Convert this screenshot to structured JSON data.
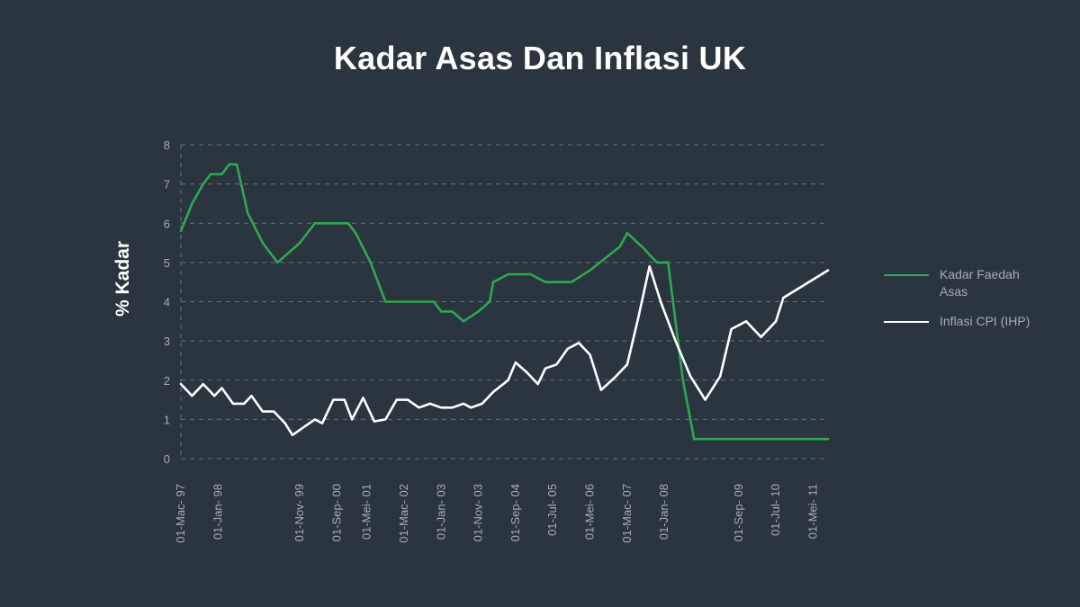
{
  "title": "Kadar Asas Dan Inflasi UK",
  "colors": {
    "background": "#2a353f",
    "grid": "#6b747d",
    "text": "#a6adb5",
    "series_1": "#2ea84f",
    "series_2": "#ffffff"
  },
  "chart_data": {
    "type": "line",
    "title": "Kadar Asas Dan Inflasi UK",
    "xlabel": "",
    "ylabel": "% Kadar",
    "ylim": [
      0,
      8
    ],
    "yticks": [
      0,
      1,
      2,
      3,
      4,
      5,
      6,
      7,
      8
    ],
    "xlim": [
      "1997-03",
      "2011-09"
    ],
    "grid": true,
    "legend": "right",
    "x_tick_labels": [
      {
        "date": "1997-03",
        "label": "01-Mac- 97"
      },
      {
        "date": "1998-01",
        "label": "01-Jan- 98"
      },
      {
        "date": "1999-11",
        "label": "01-Nov- 99"
      },
      {
        "date": "2000-09",
        "label": "01-Sep- 00"
      },
      {
        "date": "2001-05",
        "label": "01-Mei- 01"
      },
      {
        "date": "2002-03",
        "label": "01-Mac- 02"
      },
      {
        "date": "2003-01",
        "label": "01-Jan- 03"
      },
      {
        "date": "2003-11",
        "label": "01-Nov- 03"
      },
      {
        "date": "2004-09",
        "label": "01-Sep- 04"
      },
      {
        "date": "2005-07",
        "label": "01-Jul- 05"
      },
      {
        "date": "2006-05",
        "label": "01-Mei- 06"
      },
      {
        "date": "2007-03",
        "label": "01-Mac- 07"
      },
      {
        "date": "2008-01",
        "label": "01-Jan- 08"
      },
      {
        "date": "2009-09",
        "label": "01-Sep- 09"
      },
      {
        "date": "2010-07",
        "label": "01-Jul- 10"
      },
      {
        "date": "2011-05",
        "label": "01-Mei- 11"
      }
    ],
    "series": [
      {
        "name": "Kadar Faedah Asas",
        "color": "#2ea84f",
        "points": [
          [
            "1997-03",
            5.8
          ],
          [
            "1997-06",
            6.5
          ],
          [
            "1997-09",
            7.0
          ],
          [
            "1997-11",
            7.25
          ],
          [
            "1998-02",
            7.25
          ],
          [
            "1998-04",
            7.5
          ],
          [
            "1998-06",
            7.5
          ],
          [
            "1998-09",
            6.25
          ],
          [
            "1999-01",
            5.5
          ],
          [
            "1999-05",
            5.0
          ],
          [
            "1999-11",
            5.5
          ],
          [
            "2000-03",
            6.0
          ],
          [
            "2000-07",
            6.0
          ],
          [
            "2000-09",
            6.0
          ],
          [
            "2000-12",
            6.0
          ],
          [
            "2001-02",
            5.75
          ],
          [
            "2001-06",
            5.0
          ],
          [
            "2001-10",
            4.0
          ],
          [
            "2002-03",
            4.0
          ],
          [
            "2002-11",
            4.0
          ],
          [
            "2003-01",
            3.75
          ],
          [
            "2003-04",
            3.75
          ],
          [
            "2003-07",
            3.5
          ],
          [
            "2003-11",
            3.75
          ],
          [
            "2004-02",
            4.0
          ],
          [
            "2004-03",
            4.5
          ],
          [
            "2004-07",
            4.7
          ],
          [
            "2004-09",
            4.7
          ],
          [
            "2005-01",
            4.7
          ],
          [
            "2005-05",
            4.5
          ],
          [
            "2005-09",
            4.5
          ],
          [
            "2005-12",
            4.5
          ],
          [
            "2006-05",
            4.8
          ],
          [
            "2006-09",
            5.1
          ],
          [
            "2007-01",
            5.4
          ],
          [
            "2007-03",
            5.75
          ],
          [
            "2007-07",
            5.4
          ],
          [
            "2007-11",
            5.0
          ],
          [
            "2008-02",
            5.0
          ],
          [
            "2008-06",
            2.0
          ],
          [
            "2008-09",
            0.5
          ],
          [
            "2009-03",
            0.5
          ],
          [
            "2009-09",
            0.5
          ],
          [
            "2010-03",
            0.5
          ],
          [
            "2010-09",
            0.5
          ],
          [
            "2011-03",
            0.5
          ],
          [
            "2011-09",
            0.5
          ]
        ]
      },
      {
        "name": "Inflasi CPI (IHP)",
        "color": "#ffffff",
        "points": [
          [
            "1997-03",
            1.9
          ],
          [
            "1997-06",
            1.6
          ],
          [
            "1997-09",
            1.9
          ],
          [
            "1997-12",
            1.6
          ],
          [
            "1998-02",
            1.8
          ],
          [
            "1998-05",
            1.4
          ],
          [
            "1998-08",
            1.4
          ],
          [
            "1998-10",
            1.6
          ],
          [
            "1999-01",
            1.2
          ],
          [
            "1999-04",
            1.2
          ],
          [
            "1999-07",
            0.9
          ],
          [
            "1999-09",
            0.6
          ],
          [
            "1999-12",
            0.8
          ],
          [
            "2000-03",
            1.0
          ],
          [
            "2000-05",
            0.9
          ],
          [
            "2000-08",
            1.5
          ],
          [
            "2000-11",
            1.5
          ],
          [
            "2001-01",
            1.0
          ],
          [
            "2001-04",
            1.55
          ],
          [
            "2001-07",
            0.95
          ],
          [
            "2001-10",
            1.0
          ],
          [
            "2002-01",
            1.5
          ],
          [
            "2002-04",
            1.5
          ],
          [
            "2002-07",
            1.3
          ],
          [
            "2002-10",
            1.4
          ],
          [
            "2003-01",
            1.3
          ],
          [
            "2003-04",
            1.3
          ],
          [
            "2003-07",
            1.4
          ],
          [
            "2003-09",
            1.3
          ],
          [
            "2003-12",
            1.4
          ],
          [
            "2004-03",
            1.7
          ],
          [
            "2004-07",
            2.0
          ],
          [
            "2004-09",
            2.45
          ],
          [
            "2004-12",
            2.2
          ],
          [
            "2005-03",
            1.9
          ],
          [
            "2005-05",
            2.3
          ],
          [
            "2005-08",
            2.4
          ],
          [
            "2005-11",
            2.8
          ],
          [
            "2006-02",
            2.95
          ],
          [
            "2006-05",
            2.65
          ],
          [
            "2006-08",
            1.75
          ],
          [
            "2006-12",
            2.1
          ],
          [
            "2007-03",
            2.4
          ],
          [
            "2007-06",
            3.6
          ],
          [
            "2007-09",
            4.9
          ],
          [
            "2007-12",
            4.0
          ],
          [
            "2008-04",
            3.0
          ],
          [
            "2008-08",
            2.1
          ],
          [
            "2008-12",
            1.5
          ],
          [
            "2009-04",
            2.1
          ],
          [
            "2009-07",
            3.3
          ],
          [
            "2009-11",
            3.5
          ],
          [
            "2010-03",
            3.1
          ],
          [
            "2010-07",
            3.5
          ],
          [
            "2010-09",
            4.1
          ],
          [
            "2011-09",
            4.8
          ]
        ]
      }
    ]
  }
}
